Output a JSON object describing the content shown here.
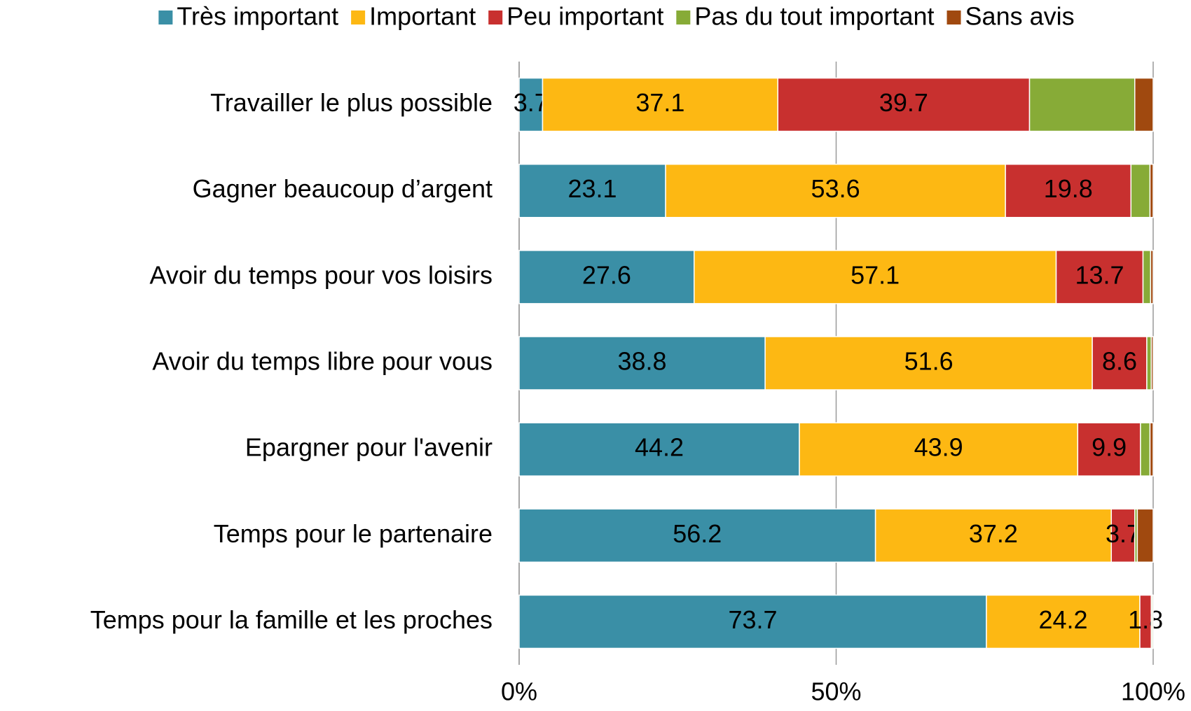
{
  "chart_data": {
    "type": "stacked_bar_horizontal",
    "categories": [
      "Travailler le plus possible",
      "Gagner beaucoup d’argent",
      "Avoir du temps pour vos loisirs",
      "Avoir du temps libre pour vous",
      "Epargner pour l'avenir",
      "Temps pour le partenaire",
      "Temps pour la famille et les proches"
    ],
    "series": [
      {
        "name": "Très important",
        "color": "#3a8fa6",
        "show_values": true,
        "values": [
          3.7,
          23.1,
          27.6,
          38.8,
          44.2,
          56.2,
          73.7
        ]
      },
      {
        "name": "Important",
        "color": "#fdb813",
        "show_values": true,
        "values": [
          37.1,
          53.6,
          57.1,
          51.6,
          43.9,
          37.2,
          24.2
        ]
      },
      {
        "name": "Peu important",
        "color": "#c8302f",
        "show_values": true,
        "values": [
          39.7,
          19.8,
          13.7,
          8.6,
          9.9,
          3.7,
          1.8
        ]
      },
      {
        "name": "Pas du tout important",
        "color": "#87ab37",
        "show_values": false,
        "values": [
          16.6,
          3.0,
          1.2,
          0.7,
          1.5,
          0.4,
          0.2
        ]
      },
      {
        "name": "Sans avis",
        "color": "#a0490f",
        "show_values": false,
        "values": [
          2.9,
          0.5,
          0.4,
          0.3,
          0.5,
          2.5,
          0.1
        ]
      }
    ],
    "xlim": [
      0,
      100
    ],
    "xticks": [
      {
        "value": 0,
        "label": "0%"
      },
      {
        "value": 50,
        "label": "50%"
      },
      {
        "value": 100,
        "label": "100%"
      }
    ],
    "grid": true,
    "legend": "top"
  }
}
